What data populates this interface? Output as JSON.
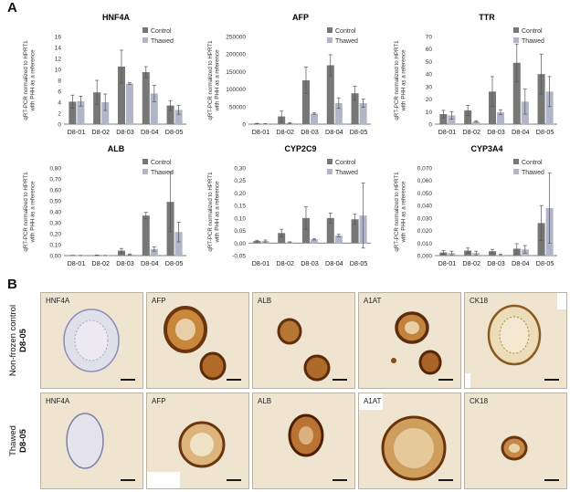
{
  "panel_a_label": "A",
  "panel_b_label": "B",
  "colors": {
    "control": "#777777",
    "thawed": "#b0b6c8"
  },
  "chart_data": [
    {
      "type": "bar",
      "title": "HNF4A",
      "ylabel": "qRT-PCR normalized to HPRT1 with PHH as a reference",
      "categories": [
        "D8-01",
        "D8-02",
        "D8-03",
        "D8-04",
        "D8-05"
      ],
      "ylim": [
        0,
        16
      ],
      "yticks": [
        "0",
        "2",
        "4",
        "6",
        "8",
        "10",
        "12",
        "14",
        "16"
      ],
      "series": [
        {
          "name": "Control",
          "values": [
            4.1,
            5.8,
            10.5,
            9.5,
            3.4
          ],
          "errors": [
            1.2,
            2.2,
            3.0,
            1.0,
            0.9
          ]
        },
        {
          "name": "Thawed",
          "values": [
            4.2,
            4.0,
            7.4,
            5.6,
            2.6
          ],
          "errors": [
            0.9,
            1.5,
            0.15,
            1.5,
            0.8
          ]
        }
      ]
    },
    {
      "type": "bar",
      "title": "AFP",
      "ylabel": "qRT-PCR normalized to HPRT1 with PHH as a reference",
      "categories": [
        "D8-01",
        "D8-02",
        "D8-03",
        "D8-04",
        "D8-05"
      ],
      "ylim": [
        0,
        200000
      ],
      "yticks": [
        "0",
        "50000",
        "100000",
        "150000",
        "200000",
        "250000"
      ],
      "yticks_top": 250000,
      "series": [
        {
          "name": "Control",
          "values": [
            1500,
            22000,
            125000,
            168000,
            88000
          ],
          "errors": [
            800,
            15000,
            38000,
            30000,
            20000
          ]
        },
        {
          "name": "Thawed",
          "values": [
            1000,
            3000,
            30000,
            60000,
            60000
          ],
          "errors": [
            500,
            1500,
            2000,
            15000,
            12000
          ]
        }
      ]
    },
    {
      "type": "bar",
      "title": "TTR",
      "ylabel": "qRT-PCR normalized to HPRT1 with PHH as a reference",
      "categories": [
        "D8-01",
        "D8-02",
        "D8-03",
        "D8-04",
        "D8-05"
      ],
      "ylim": [
        0,
        70
      ],
      "yticks": [
        "0",
        "10",
        "20",
        "30",
        "40",
        "50",
        "60",
        "70"
      ],
      "series": [
        {
          "name": "Control",
          "values": [
            8,
            11,
            26,
            49,
            40
          ],
          "errors": [
            3,
            4,
            12,
            15,
            16
          ]
        },
        {
          "name": "Thawed",
          "values": [
            7,
            2,
            9.5,
            18,
            26
          ],
          "errors": [
            3,
            0.5,
            2,
            10,
            12
          ]
        }
      ]
    },
    {
      "type": "bar",
      "title": "ALB",
      "ylabel": "qRT-PCR normalized to HPRT1 with PHH as a reference",
      "categories": [
        "D8-01",
        "D8-02",
        "D8-03",
        "D8-04",
        "D8-05"
      ],
      "ylim": [
        0,
        0.8
      ],
      "yticks": [
        "0,00",
        "0,10",
        "0,20",
        "0,30",
        "0,40",
        "0,50",
        "0,60",
        "0,70",
        "0,80"
      ],
      "series": [
        {
          "name": "Control",
          "values": [
            0.002,
            0.003,
            0.045,
            0.365,
            0.49
          ],
          "errors": [
            0.001,
            0.002,
            0.02,
            0.03,
            0.27
          ]
        },
        {
          "name": "Thawed",
          "values": [
            0.001,
            0.001,
            0.01,
            0.06,
            0.215
          ],
          "errors": [
            0.001,
            0.001,
            0.005,
            0.02,
            0.09
          ]
        }
      ]
    },
    {
      "type": "bar",
      "title": "CYP2C9",
      "ylabel": "qRT-PCR normalized to HPRT1 with PHH as a reference",
      "categories": [
        "D8-01",
        "D8-02",
        "D8-03",
        "D8-04",
        "D8-05"
      ],
      "ylim": [
        -0.05,
        0.3
      ],
      "yticks": [
        "-0,05",
        "0,00",
        "0,05",
        "0,10",
        "0,15",
        "0,20",
        "0,25",
        "0,30"
      ],
      "series": [
        {
          "name": "Control",
          "values": [
            0.008,
            0.04,
            0.1,
            0.1,
            0.095
          ],
          "errors": [
            0.003,
            0.015,
            0.045,
            0.02,
            0.02
          ]
        },
        {
          "name": "Thawed",
          "values": [
            0.008,
            0.003,
            0.015,
            0.03,
            0.11
          ],
          "errors": [
            0.004,
            0.002,
            0.003,
            0.005,
            0.13
          ]
        }
      ]
    },
    {
      "type": "bar",
      "title": "CYP3A4",
      "ylabel": "qRT-PCR normalized to HPRT1 with PHH as a reference",
      "categories": [
        "D8-01",
        "D8-02",
        "D8-03",
        "D8-04",
        "D8-05"
      ],
      "ylim": [
        0,
        0.07
      ],
      "yticks": [
        "0,000",
        "0,010",
        "0,020",
        "0,030",
        "0,040",
        "0,050",
        "0,060",
        "0,070"
      ],
      "series": [
        {
          "name": "Control",
          "values": [
            0.0025,
            0.004,
            0.0035,
            0.0055,
            0.026
          ],
          "errors": [
            0.0015,
            0.002,
            0.0015,
            0.004,
            0.014
          ]
        },
        {
          "name": "Thawed",
          "values": [
            0.002,
            0.002,
            0.0005,
            0.005,
            0.038
          ],
          "errors": [
            0.0015,
            0.0015,
            0.0005,
            0.003,
            0.028
          ]
        }
      ]
    }
  ],
  "micrographs": {
    "row_labels": [
      {
        "line1": "Non-frozen control",
        "line2": "D8-05"
      },
      {
        "line1": "Thawed",
        "line2": "D8-05"
      }
    ],
    "markers": [
      "HNF4A",
      "AFP",
      "ALB",
      "A1AT",
      "CK18"
    ]
  }
}
